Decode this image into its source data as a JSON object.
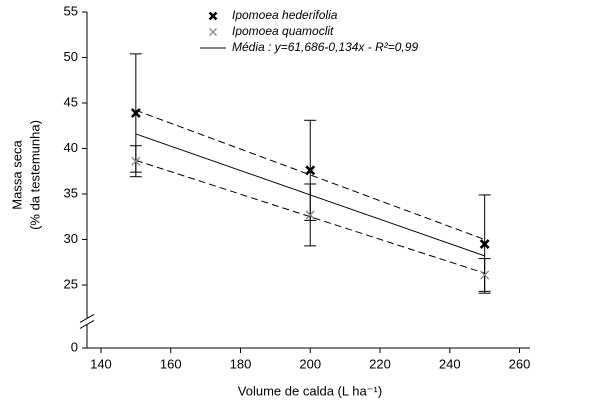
{
  "chart_data": {
    "type": "scatter",
    "xlabel": "Volume de calda (L ha⁻¹)",
    "ylabel": [
      "Massa seca",
      "(% da testemunha)"
    ],
    "xlim": [
      136,
      263
    ],
    "xticks": [
      140,
      160,
      180,
      200,
      220,
      240,
      260
    ],
    "ylim": [
      0,
      55
    ],
    "yticks": [
      0,
      25,
      30,
      35,
      40,
      45,
      50,
      55
    ],
    "ybreak": 21,
    "series": [
      {
        "name": "Ipomoea hederifolia",
        "marker": "x-bold",
        "color": "#000000",
        "x": [
          150,
          200,
          250
        ],
        "values": [
          43.9,
          37.6,
          29.5
        ],
        "errors": [
          6.5,
          5.5,
          5.4
        ]
      },
      {
        "name": "Ipomoea quamoclit",
        "marker": "x-light",
        "color": "#333333",
        "x": [
          150,
          200,
          250
        ],
        "values": [
          38.6,
          32.7,
          26.1
        ],
        "errors": [
          1.7,
          3.4,
          1.8
        ]
      }
    ],
    "fit_lines": [
      {
        "name": "Média : y=61,686-0,134x - R²=0,99",
        "dash": false,
        "x": [
          150,
          250
        ],
        "values": [
          41.6,
          28.2
        ]
      },
      {
        "dash": true,
        "x": [
          150,
          250
        ],
        "values": [
          44.2,
          30.0
        ]
      },
      {
        "dash": true,
        "x": [
          150,
          250
        ],
        "values": [
          38.7,
          26.3
        ]
      }
    ]
  }
}
